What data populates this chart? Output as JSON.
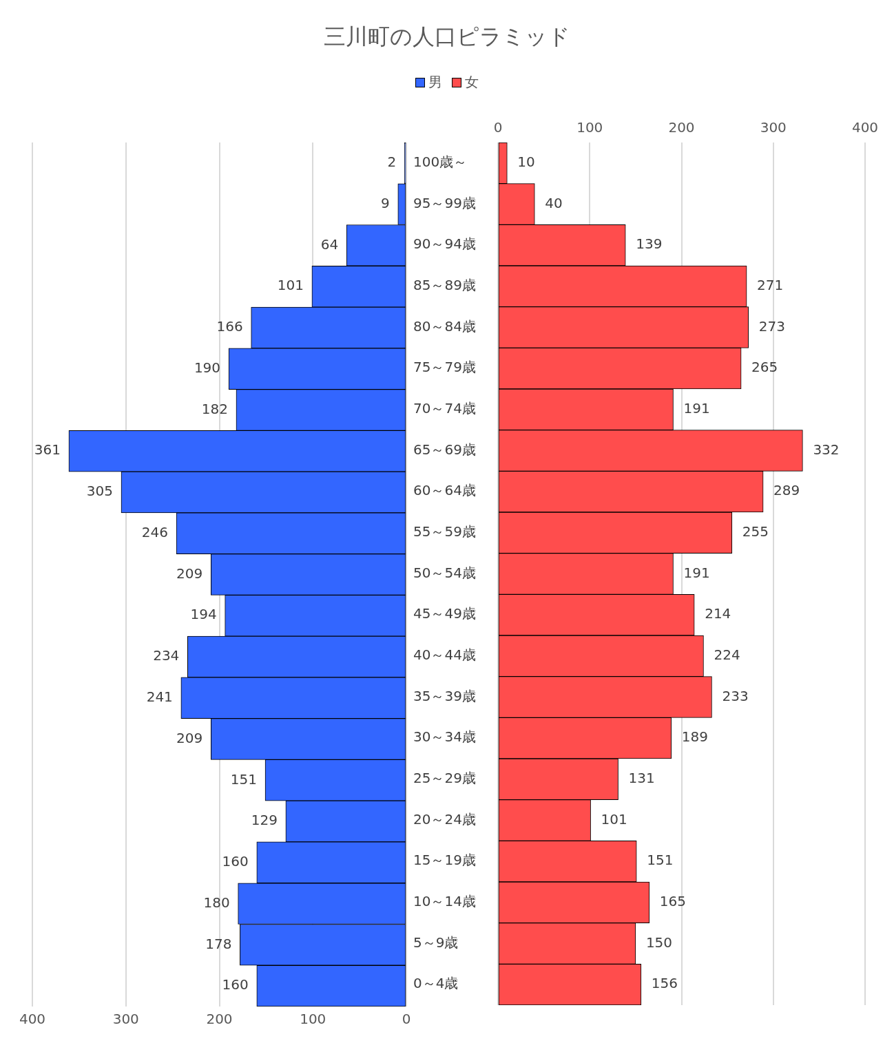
{
  "chart_data": [
    {
      "type": "bar",
      "title": "三川町の人口ピラミッド",
      "orientation": "horizontal",
      "legend": "top",
      "grid": "x",
      "data_labels": true,
      "tick_labels": "x",
      "categories": [
        null,
        null,
        null,
        null,
        null,
        null,
        null,
        null,
        null,
        null,
        null,
        null,
        null,
        null,
        null,
        null,
        null,
        null,
        null,
        null,
        null
      ],
      "xlim": [
        400,
        0
      ],
      "xticks": [
        400,
        300,
        200,
        100,
        0
      ],
      "series": [
        {
          "name": "男",
          "color": "#3366ff",
          "values": [
            2,
            9,
            64,
            101,
            166,
            190,
            182,
            361,
            305,
            246,
            209,
            194,
            234,
            241,
            209,
            151,
            129,
            160,
            180,
            178,
            160
          ]
        }
      ]
    },
    {
      "type": "bar",
      "orientation": "horizontal",
      "legend": "top",
      "grid": "x",
      "data_labels": true,
      "categories": [
        "100歳～",
        "95～99歳",
        "90～94歳",
        "85～89歳",
        "80～84歳",
        "75～79歳",
        "70～74歳",
        "65～69歳",
        "60～64歳",
        "55～59歳",
        "50～54歳",
        "45～49歳",
        "40～44歳",
        "35～39歳",
        "30～34歳",
        "25～29歳",
        "20～24歳",
        "15～19歳",
        "10～14歳",
        "5～9歳",
        "0～4歳"
      ],
      "xlim": [
        0,
        400
      ],
      "xticks": [
        0,
        100,
        200,
        300,
        400
      ],
      "series": [
        {
          "name": "女",
          "color": "#ff4d4d",
          "values": [
            10,
            40,
            139,
            271,
            273,
            265,
            191,
            332,
            289,
            255,
            191,
            214,
            224,
            233,
            189,
            131,
            101,
            151,
            165,
            150,
            156
          ]
        }
      ]
    }
  ]
}
